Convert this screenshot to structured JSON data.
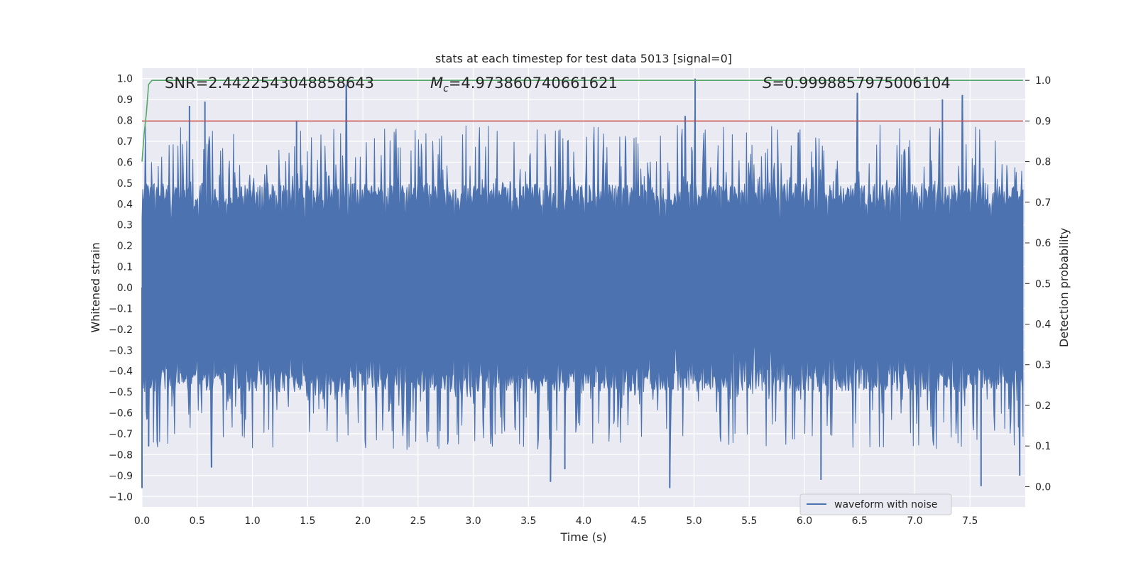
{
  "chart_data": {
    "type": "line",
    "title": "stats at each timestep for test data 5013 [signal=0]",
    "xlabel": "Time (s)",
    "ylabel_left": "Whitened strain",
    "ylabel_right": "Detection probability",
    "xlim": [
      0,
      8
    ],
    "ylim_left": [
      -1.05,
      1.05
    ],
    "ylim_right": [
      -0.05,
      1.03
    ],
    "x_ticks": [
      "0.0",
      "0.5",
      "1.0",
      "1.5",
      "2.0",
      "2.5",
      "3.0",
      "3.5",
      "4.0",
      "4.5",
      "5.0",
      "5.5",
      "6.0",
      "6.5",
      "7.0",
      "7.5"
    ],
    "y_ticks_left": [
      "1.0",
      "0.9",
      "0.8",
      "0.7",
      "0.6",
      "0.5",
      "0.4",
      "0.3",
      "0.2",
      "0.1",
      "0.0",
      "-0.1",
      "-0.2",
      "-0.3",
      "-0.4",
      "-0.5",
      "-0.6",
      "-0.7",
      "-0.8",
      "-0.9",
      "-1.0"
    ],
    "y_ticks_right": [
      "1.0",
      "0.9",
      "0.8",
      "0.7",
      "0.6",
      "0.5",
      "0.4",
      "0.3",
      "0.2",
      "0.1",
      "0.0"
    ],
    "annotations": {
      "snr": "SNR=2.4422543048858643",
      "mc_symbol": "M",
      "mc_sub": "c",
      "mc_value": "=4.973860740661621",
      "s_symbol": "S",
      "s_value": "=0.9998857975006104"
    },
    "threshold": 0.9,
    "series": [
      {
        "name": "waveform with noise",
        "axis": "left",
        "color": "#4c72b0",
        "envelope_description_only": true,
        "peak_spikes": [
          {
            "x": 0.43,
            "y": 0.87
          },
          {
            "x": 0.57,
            "y": 0.89
          },
          {
            "x": 1.85,
            "y": 0.97
          },
          {
            "x": 5.01,
            "y": 1.0
          },
          {
            "x": 6.48,
            "y": 0.93
          },
          {
            "x": 7.25,
            "y": 0.9
          },
          {
            "x": 7.43,
            "y": 0.92
          },
          {
            "x": 4.92,
            "y": 0.82
          },
          {
            "x": 1.4,
            "y": 0.8
          }
        ],
        "trough_spikes": [
          {
            "x": 0.0,
            "y": -0.96
          },
          {
            "x": 0.06,
            "y": -0.76
          },
          {
            "x": 0.63,
            "y": -0.86
          },
          {
            "x": 3.7,
            "y": -0.93
          },
          {
            "x": 3.83,
            "y": -0.87
          },
          {
            "x": 4.78,
            "y": -0.96
          },
          {
            "x": 6.15,
            "y": -0.92
          },
          {
            "x": 7.6,
            "y": -0.95
          },
          {
            "x": 7.95,
            "y": -0.9
          }
        ]
      },
      {
        "name": "",
        "axis": "right",
        "color": "#55a868",
        "x": [
          0.0,
          0.02,
          0.04,
          0.06,
          0.09,
          0.12,
          5.5,
          5.7,
          7.98
        ],
        "y": [
          0.8,
          0.87,
          0.92,
          0.99,
          1.0,
          1.0,
          1.0,
          1.0,
          1.0
        ]
      },
      {
        "name": "",
        "axis": "right",
        "color": "#c44e52",
        "x": [
          0.0,
          7.98
        ],
        "y": [
          0.9,
          0.9
        ]
      }
    ],
    "legend": {
      "placement": "lower-right",
      "entries": [
        "waveform with noise"
      ]
    },
    "grid": true,
    "background": "#eaeaf2"
  }
}
